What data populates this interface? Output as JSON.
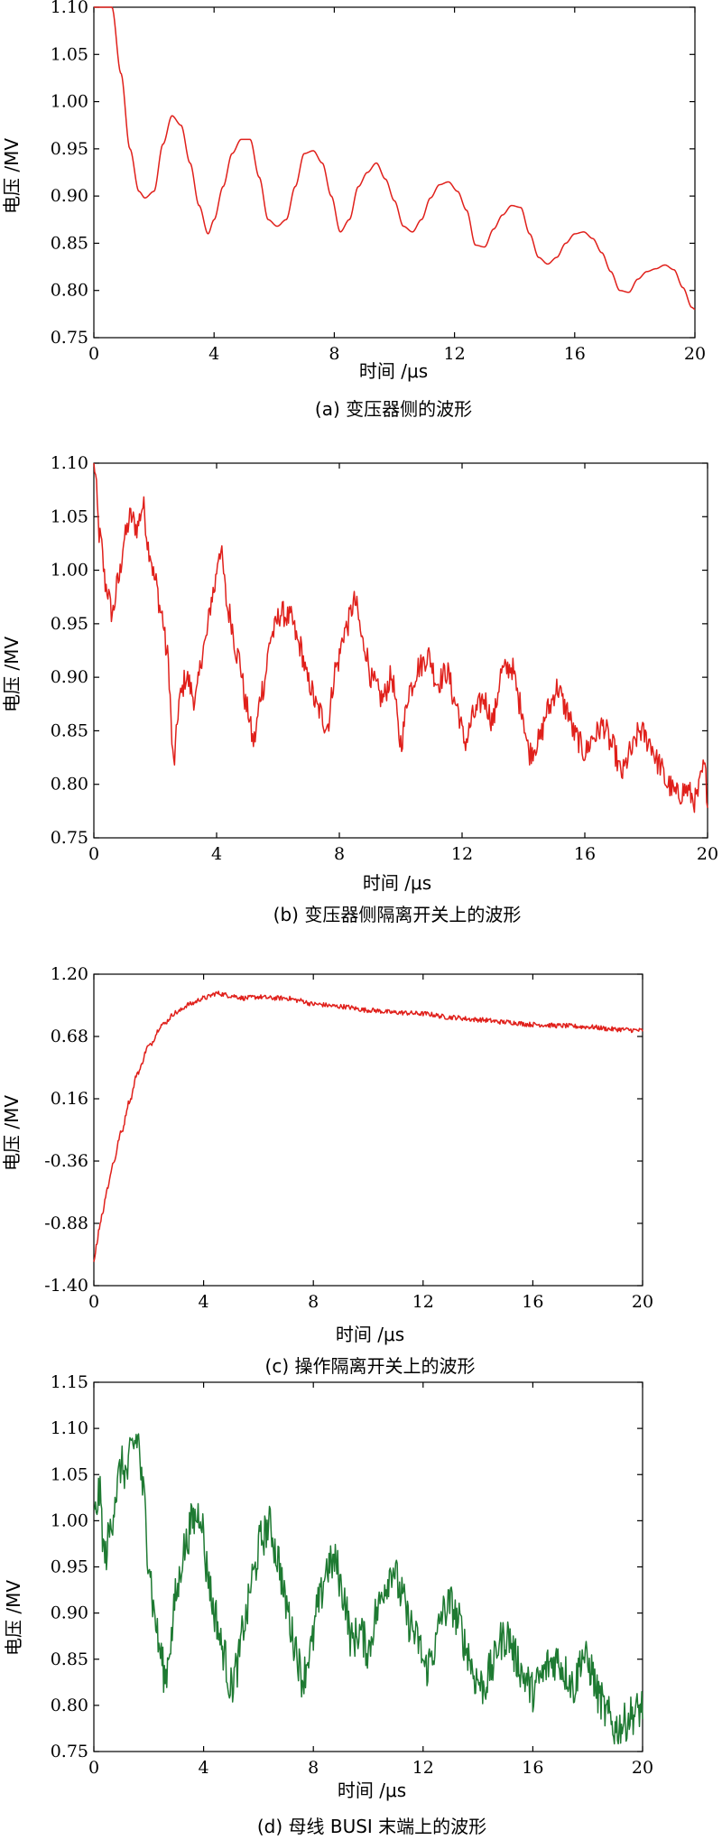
{
  "chart_data": [
    {
      "type": "line",
      "caption": "(a) 变压器侧的波形",
      "xlabel": "时间 /μs",
      "ylabel": "电压 /MV",
      "xlim": [
        0,
        20
      ],
      "ylim": [
        0.75,
        1.1
      ],
      "xticks": [
        "0",
        "4",
        "8",
        "12",
        "16",
        "20"
      ],
      "yticks": [
        "0.75",
        "0.80",
        "0.85",
        "0.90",
        "0.95",
        "1.00",
        "1.05",
        "1.10"
      ],
      "color": "#e0201b",
      "noise": 0,
      "series": [
        {
          "x": [
            0,
            0.6,
            0.9,
            1.2,
            1.5,
            1.7,
            2.0,
            2.3,
            2.6,
            2.9,
            3.2,
            3.5,
            3.8,
            4.0,
            4.3,
            4.6,
            4.9,
            5.2,
            5.5,
            5.8,
            6.1,
            6.4,
            6.7,
            7.0,
            7.3,
            7.6,
            7.9,
            8.2,
            8.5,
            8.8,
            9.1,
            9.4,
            9.7,
            10.0,
            10.3,
            10.6,
            10.9,
            11.2,
            11.5,
            11.8,
            12.1,
            12.4,
            12.7,
            13.0,
            13.3,
            13.6,
            13.9,
            14.2,
            14.5,
            14.8,
            15.1,
            15.4,
            15.7,
            16.0,
            16.3,
            16.6,
            16.9,
            17.2,
            17.5,
            17.8,
            18.1,
            18.4,
            18.7,
            19.0,
            19.3,
            19.6,
            19.9,
            20.0
          ],
          "y": [
            1.1,
            1.1,
            1.03,
            0.95,
            0.905,
            0.898,
            0.905,
            0.955,
            0.985,
            0.975,
            0.935,
            0.89,
            0.86,
            0.875,
            0.91,
            0.945,
            0.96,
            0.96,
            0.92,
            0.875,
            0.868,
            0.875,
            0.91,
            0.945,
            0.948,
            0.935,
            0.9,
            0.862,
            0.875,
            0.91,
            0.925,
            0.935,
            0.918,
            0.895,
            0.868,
            0.862,
            0.875,
            0.898,
            0.912,
            0.915,
            0.905,
            0.885,
            0.848,
            0.846,
            0.865,
            0.88,
            0.89,
            0.888,
            0.86,
            0.835,
            0.828,
            0.835,
            0.85,
            0.86,
            0.862,
            0.855,
            0.84,
            0.82,
            0.8,
            0.798,
            0.812,
            0.82,
            0.823,
            0.827,
            0.822,
            0.803,
            0.782,
            0.78
          ]
        }
      ]
    },
    {
      "type": "line",
      "caption": "(b) 变压器侧隔离开关上的波形",
      "xlabel": "时间 /μs",
      "ylabel": "电压 /MV",
      "xlim": [
        0,
        20
      ],
      "ylim": [
        0.75,
        1.1
      ],
      "xticks": [
        "0",
        "4",
        "8",
        "12",
        "16",
        "20"
      ],
      "yticks": [
        "0.75",
        "0.80",
        "0.85",
        "0.90",
        "0.95",
        "1.00",
        "1.05",
        "1.10"
      ],
      "color": "#e0201b",
      "noise": 0.012,
      "series": [
        {
          "x": [
            0,
            0.2,
            0.4,
            0.6,
            0.8,
            1.0,
            1.2,
            1.4,
            1.6,
            1.8,
            2.0,
            2.2,
            2.4,
            2.6,
            2.8,
            3.0,
            3.3,
            3.6,
            3.9,
            4.1,
            4.4,
            4.7,
            5.0,
            5.2,
            5.5,
            5.8,
            6.1,
            6.4,
            6.7,
            7.0,
            7.3,
            7.6,
            7.9,
            8.2,
            8.5,
            8.8,
            9.1,
            9.4,
            9.7,
            10.0,
            10.3,
            10.6,
            10.9,
            11.2,
            11.5,
            11.8,
            12.1,
            12.4,
            12.7,
            13.0,
            13.3,
            13.6,
            13.9,
            14.2,
            14.5,
            14.8,
            15.1,
            15.4,
            15.7,
            16.0,
            16.3,
            16.6,
            16.9,
            17.2,
            17.5,
            17.8,
            18.1,
            18.4,
            18.7,
            19.0,
            19.3,
            19.6,
            19.9,
            20.0
          ],
          "y": [
            1.1,
            1.03,
            0.985,
            0.96,
            0.99,
            1.03,
            1.05,
            1.04,
            1.06,
            1.02,
            0.99,
            0.96,
            0.92,
            0.82,
            0.88,
            0.9,
            0.88,
            0.93,
            0.98,
            1.02,
            0.96,
            0.92,
            0.87,
            0.84,
            0.89,
            0.94,
            0.96,
            0.955,
            0.93,
            0.895,
            0.87,
            0.855,
            0.91,
            0.945,
            0.97,
            0.93,
            0.895,
            0.88,
            0.9,
            0.84,
            0.89,
            0.91,
            0.92,
            0.895,
            0.905,
            0.875,
            0.84,
            0.865,
            0.88,
            0.86,
            0.905,
            0.91,
            0.875,
            0.83,
            0.84,
            0.87,
            0.89,
            0.87,
            0.845,
            0.83,
            0.845,
            0.855,
            0.835,
            0.81,
            0.83,
            0.85,
            0.84,
            0.82,
            0.8,
            0.79,
            0.795,
            0.785,
            0.815,
            0.79
          ]
        }
      ]
    },
    {
      "type": "line",
      "caption": "(c) 操作隔离开关上的波形",
      "xlabel": "时间 /μs",
      "ylabel": "电压 /MV",
      "xlim": [
        0,
        20
      ],
      "ylim": [
        -1.4,
        1.2
      ],
      "xticks": [
        "0",
        "4",
        "8",
        "12",
        "16",
        "20"
      ],
      "yticks": [
        "-1.40",
        "-0.88",
        "-0.36",
        "0.16",
        "0.68",
        "1.20"
      ],
      "color": "#e0201b",
      "noise": 0.02,
      "series": [
        {
          "x": [
            0,
            0.1,
            0.2,
            0.3,
            0.5,
            0.7,
            1.0,
            1.3,
            1.6,
            2.0,
            2.5,
            3.0,
            3.5,
            4.0,
            4.5,
            5.0,
            5.5,
            6.0,
            6.5,
            7.0,
            7.5,
            8.0,
            9.0,
            10.0,
            11.0,
            12.0,
            13.0,
            14.0,
            15.0,
            16.0,
            17.0,
            18.0,
            19.0,
            20.0
          ],
          "y": [
            -1.2,
            -1.05,
            -0.92,
            -0.8,
            -0.58,
            -0.38,
            -0.12,
            0.14,
            0.38,
            0.6,
            0.78,
            0.88,
            0.95,
            1.0,
            1.04,
            1.02,
            1.0,
            1.01,
            1.0,
            1.0,
            0.98,
            0.95,
            0.93,
            0.9,
            0.88,
            0.87,
            0.84,
            0.82,
            0.8,
            0.78,
            0.77,
            0.76,
            0.74,
            0.73
          ]
        }
      ]
    },
    {
      "type": "line",
      "caption": "(d) 母线 BUSI 末端上的波形",
      "xlabel": "时间 /μs",
      "ylabel": "电压 /MV",
      "xlim": [
        0,
        20
      ],
      "ylim": [
        0.75,
        1.15
      ],
      "xticks": [
        "0",
        "4",
        "8",
        "12",
        "16",
        "20"
      ],
      "yticks": [
        "0.75",
        "0.80",
        "0.85",
        "0.90",
        "0.95",
        "1.00",
        "1.05",
        "1.10",
        "1.15"
      ],
      "color": "#1e7a32",
      "noise": 0.022,
      "series": [
        {
          "x": [
            0,
            0.2,
            0.4,
            0.6,
            0.8,
            1.0,
            1.2,
            1.4,
            1.6,
            1.8,
            2.0,
            2.2,
            2.4,
            2.6,
            2.8,
            3.0,
            3.3,
            3.6,
            3.9,
            4.1,
            4.4,
            4.7,
            5.0,
            5.2,
            5.5,
            5.8,
            6.1,
            6.4,
            6.7,
            7.0,
            7.3,
            7.6,
            7.9,
            8.2,
            8.5,
            8.8,
            9.1,
            9.4,
            9.7,
            10.0,
            10.3,
            10.6,
            10.9,
            11.2,
            11.5,
            11.8,
            12.1,
            12.4,
            12.7,
            13.0,
            13.3,
            13.6,
            13.9,
            14.2,
            14.5,
            14.8,
            15.1,
            15.4,
            15.7,
            16.0,
            16.3,
            16.6,
            16.9,
            17.2,
            17.5,
            17.8,
            18.1,
            18.4,
            18.7,
            19.0,
            19.3,
            19.6,
            19.9,
            20.0
          ],
          "y": [
            1.0,
            1.03,
            0.96,
            0.99,
            1.03,
            1.06,
            1.05,
            1.08,
            1.09,
            1.03,
            0.96,
            0.9,
            0.86,
            0.83,
            0.87,
            0.92,
            0.97,
            1.0,
            1.01,
            0.95,
            0.9,
            0.86,
            0.82,
            0.84,
            0.89,
            0.94,
            0.98,
            0.995,
            0.96,
            0.91,
            0.87,
            0.83,
            0.86,
            0.91,
            0.95,
            0.955,
            0.92,
            0.87,
            0.88,
            0.86,
            0.9,
            0.93,
            0.95,
            0.92,
            0.89,
            0.87,
            0.84,
            0.86,
            0.9,
            0.91,
            0.89,
            0.86,
            0.83,
            0.82,
            0.84,
            0.87,
            0.875,
            0.85,
            0.83,
            0.815,
            0.83,
            0.845,
            0.85,
            0.835,
            0.82,
            0.855,
            0.84,
            0.81,
            0.79,
            0.775,
            0.78,
            0.79,
            0.795,
            0.8
          ]
        }
      ]
    }
  ]
}
